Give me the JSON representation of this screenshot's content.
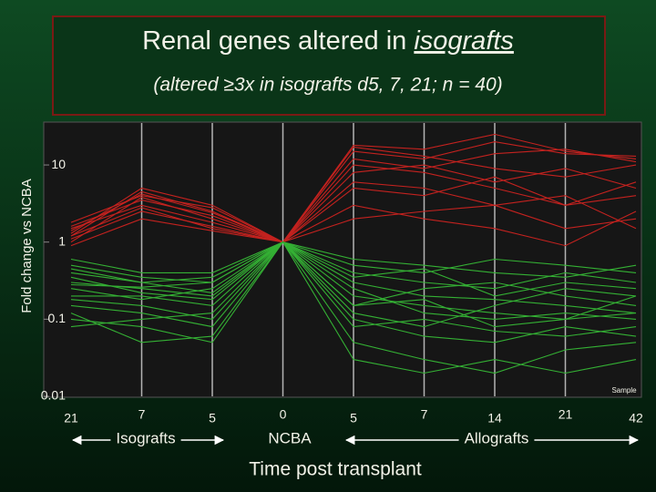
{
  "chart_data": {
    "type": "line",
    "title": {
      "text": "Renal genes altered in",
      "emphasis": "isografts"
    },
    "subtitle": "(altered ≥3x in isografts d5, 7, 21; n = 40)",
    "y_label": "Fold change vs NCBA",
    "x_label": "Time post transplant",
    "groups": [
      "Isografts",
      "NCBA",
      "Allografts"
    ],
    "watermark": "Sample",
    "categories": [
      "21",
      "7",
      "5",
      "0",
      "5",
      "7",
      "14",
      "21",
      "42"
    ],
    "log_scale": true,
    "ylim": [
      0.01,
      35
    ],
    "yticks": [
      10,
      1,
      0.1,
      0.01
    ],
    "grid": true,
    "series": [
      {
        "color": "#c4221f",
        "values": [
          1.2,
          4.5,
          2.5,
          1,
          18,
          16,
          25,
          15,
          12
        ]
      },
      {
        "color": "#c4221f",
        "values": [
          1.0,
          3.8,
          2.0,
          1,
          10,
          8,
          5,
          3,
          4
        ]
      },
      {
        "color": "#c4221f",
        "values": [
          1.5,
          3.0,
          1.8,
          1,
          6,
          5,
          3,
          1.5,
          2
        ]
      },
      {
        "color": "#c4221f",
        "values": [
          1.8,
          4.0,
          2.8,
          1,
          15,
          12,
          20,
          14,
          13
        ]
      },
      {
        "color": "#c4221f",
        "values": [
          1.1,
          2.5,
          1.6,
          1,
          8,
          10,
          6,
          9,
          5
        ]
      },
      {
        "color": "#c4221f",
        "values": [
          1.3,
          5.0,
          3.0,
          1,
          3,
          2,
          1.5,
          0.9,
          2.5
        ]
      },
      {
        "color": "#c4221f",
        "values": [
          0.9,
          2.0,
          1.4,
          1,
          12,
          9,
          14,
          16,
          11
        ]
      },
      {
        "color": "#c4221f",
        "values": [
          1.6,
          3.5,
          2.2,
          1,
          5,
          4,
          7,
          3,
          6
        ]
      },
      {
        "color": "#c4221f",
        "values": [
          1.2,
          2.8,
          1.5,
          1,
          2,
          2.5,
          3,
          4,
          1.5
        ]
      },
      {
        "color": "#c4221f",
        "values": [
          1.4,
          4.2,
          2.4,
          1,
          17,
          13,
          9,
          7,
          10
        ]
      },
      {
        "color": "#34b034",
        "values": [
          0.5,
          0.35,
          0.3,
          1,
          0.6,
          0.5,
          0.4,
          0.35,
          0.5
        ]
      },
      {
        "color": "#34b034",
        "values": [
          0.3,
          0.25,
          0.2,
          1,
          0.2,
          0.15,
          0.12,
          0.1,
          0.2
        ]
      },
      {
        "color": "#34b034",
        "values": [
          0.2,
          0.2,
          0.15,
          1,
          0.1,
          0.06,
          0.05,
          0.08,
          0.06
        ]
      },
      {
        "color": "#34b034",
        "values": [
          0.4,
          0.3,
          0.35,
          1,
          0.4,
          0.3,
          0.25,
          0.4,
          0.3
        ]
      },
      {
        "color": "#34b034",
        "values": [
          0.15,
          0.12,
          0.08,
          1,
          0.05,
          0.03,
          0.02,
          0.04,
          0.05
        ]
      },
      {
        "color": "#34b034",
        "values": [
          0.25,
          0.18,
          0.25,
          1,
          0.3,
          0.2,
          0.18,
          0.15,
          0.12
        ]
      },
      {
        "color": "#34b034",
        "values": [
          0.1,
          0.08,
          0.05,
          1,
          0.08,
          0.1,
          0.07,
          0.06,
          0.08
        ]
      },
      {
        "color": "#34b034",
        "values": [
          0.35,
          0.22,
          0.18,
          1,
          0.15,
          0.25,
          0.3,
          0.2,
          0.15
        ]
      },
      {
        "color": "#34b034",
        "values": [
          0.6,
          0.4,
          0.4,
          1,
          0.5,
          0.4,
          0.6,
          0.5,
          0.4
        ]
      },
      {
        "color": "#34b034",
        "values": [
          0.08,
          0.1,
          0.12,
          1,
          0.03,
          0.02,
          0.03,
          0.02,
          0.03
        ]
      },
      {
        "color": "#34b034",
        "values": [
          0.45,
          0.3,
          0.22,
          1,
          0.25,
          0.12,
          0.1,
          0.12,
          0.1
        ]
      },
      {
        "color": "#34b034",
        "values": [
          0.18,
          0.15,
          0.1,
          1,
          0.12,
          0.08,
          0.15,
          0.25,
          0.2
        ]
      },
      {
        "color": "#34b034",
        "values": [
          0.28,
          0.26,
          0.3,
          1,
          0.35,
          0.45,
          0.2,
          0.3,
          0.25
        ]
      },
      {
        "color": "#34b034",
        "values": [
          0.12,
          0.05,
          0.06,
          1,
          0.15,
          0.18,
          0.08,
          0.1,
          0.12
        ]
      }
    ]
  }
}
